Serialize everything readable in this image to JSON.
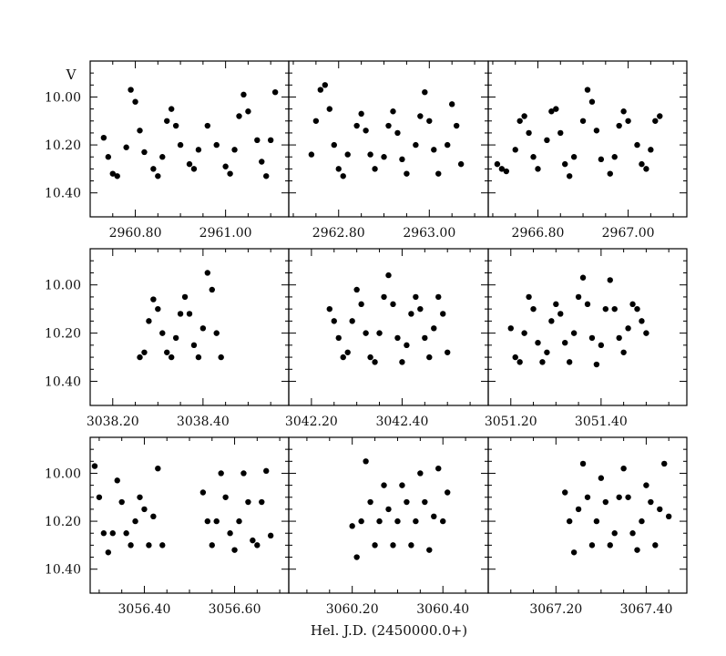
{
  "figure": {
    "y_axis_label": "V",
    "x_axis_label": "Hel. J.D. (2450000.0+)",
    "y_ticks": [
      "10.00",
      "10.20",
      "10.40"
    ]
  },
  "chart_data": [
    {
      "type": "scatter",
      "row": 1,
      "col": 1,
      "x_ticks": [
        "2960.80",
        "2961.00"
      ],
      "xlim": [
        2960.7,
        2961.14
      ],
      "ylim": [
        10.5,
        9.85
      ],
      "y_inverted": true,
      "x": [
        2960.73,
        2960.74,
        2960.75,
        2960.76,
        2960.78,
        2960.79,
        2960.8,
        2960.81,
        2960.82,
        2960.84,
        2960.85,
        2960.86,
        2960.87,
        2960.88,
        2960.89,
        2960.9,
        2960.92,
        2960.93,
        2960.94,
        2960.96,
        2960.98,
        2961.0,
        2961.01,
        2961.02,
        2961.03,
        2961.04,
        2961.05,
        2961.07,
        2961.08,
        2961.09,
        2961.1,
        2961.11
      ],
      "y": [
        10.17,
        10.25,
        10.32,
        10.33,
        10.21,
        9.97,
        10.02,
        10.14,
        10.23,
        10.3,
        10.33,
        10.25,
        10.1,
        10.05,
        10.12,
        10.2,
        10.28,
        10.3,
        10.22,
        10.12,
        10.2,
        10.29,
        10.32,
        10.22,
        10.08,
        9.99,
        10.06,
        10.18,
        10.27,
        10.33,
        10.18,
        9.98
      ],
      "marker": "filled-circle",
      "grid": false
    },
    {
      "type": "scatter",
      "row": 1,
      "col": 2,
      "x_ticks": [
        "2962.80",
        "2963.00"
      ],
      "xlim": [
        2962.69,
        2963.13
      ],
      "ylim": [
        10.5,
        9.85
      ],
      "y_inverted": true,
      "x": [
        2962.74,
        2962.75,
        2962.76,
        2962.77,
        2962.78,
        2962.79,
        2962.8,
        2962.81,
        2962.82,
        2962.84,
        2962.85,
        2962.86,
        2962.87,
        2962.88,
        2962.9,
        2962.91,
        2962.92,
        2962.93,
        2962.94,
        2962.95,
        2962.97,
        2962.98,
        2962.99,
        2963.0,
        2963.01,
        2963.02,
        2963.04,
        2963.05,
        2963.06,
        2963.07
      ],
      "y": [
        10.24,
        10.1,
        9.97,
        9.95,
        10.05,
        10.2,
        10.3,
        10.33,
        10.24,
        10.12,
        10.07,
        10.14,
        10.24,
        10.3,
        10.25,
        10.12,
        10.06,
        10.15,
        10.26,
        10.32,
        10.2,
        10.08,
        9.98,
        10.1,
        10.22,
        10.32,
        10.2,
        10.03,
        10.12,
        10.28
      ],
      "marker": "filled-circle",
      "grid": false
    },
    {
      "type": "scatter",
      "row": 1,
      "col": 3,
      "x_ticks": [
        "2966.80",
        "2967.00"
      ],
      "xlim": [
        2966.69,
        2967.13
      ],
      "ylim": [
        10.5,
        9.85
      ],
      "y_inverted": true,
      "x": [
        2966.71,
        2966.72,
        2966.73,
        2966.75,
        2966.76,
        2966.77,
        2966.78,
        2966.79,
        2966.8,
        2966.82,
        2966.83,
        2966.84,
        2966.85,
        2966.86,
        2966.87,
        2966.88,
        2966.9,
        2966.91,
        2966.92,
        2966.93,
        2966.94,
        2966.96,
        2966.97,
        2966.98,
        2966.99,
        2967.0,
        2967.02,
        2967.03,
        2967.04,
        2967.05,
        2967.06,
        2967.07
      ],
      "y": [
        10.28,
        10.3,
        10.31,
        10.22,
        10.1,
        10.08,
        10.15,
        10.25,
        10.3,
        10.18,
        10.06,
        10.05,
        10.15,
        10.28,
        10.33,
        10.25,
        10.1,
        9.97,
        10.02,
        10.14,
        10.26,
        10.32,
        10.25,
        10.12,
        10.06,
        10.1,
        10.2,
        10.28,
        10.3,
        10.22,
        10.1,
        10.08
      ],
      "marker": "filled-circle",
      "grid": false
    },
    {
      "type": "scatter",
      "row": 2,
      "col": 1,
      "x_ticks": [
        "3038.20",
        "3038.40"
      ],
      "xlim": [
        3038.15,
        3038.59
      ],
      "ylim": [
        10.5,
        9.85
      ],
      "y_inverted": true,
      "x": [
        3038.26,
        3038.27,
        3038.28,
        3038.29,
        3038.3,
        3038.31,
        3038.32,
        3038.33,
        3038.34,
        3038.35,
        3038.36,
        3038.37,
        3038.38,
        3038.39,
        3038.4,
        3038.41,
        3038.42,
        3038.43,
        3038.44
      ],
      "y": [
        10.3,
        10.28,
        10.15,
        10.06,
        10.1,
        10.2,
        10.28,
        10.3,
        10.22,
        10.12,
        10.05,
        10.12,
        10.25,
        10.3,
        10.18,
        9.95,
        10.02,
        10.2,
        10.3
      ],
      "marker": "filled-circle",
      "grid": false
    },
    {
      "type": "scatter",
      "row": 2,
      "col": 2,
      "x_ticks": [
        "3042.20",
        "3042.40"
      ],
      "xlim": [
        3042.15,
        3042.59
      ],
      "ylim": [
        10.5,
        9.85
      ],
      "y_inverted": true,
      "x": [
        3042.24,
        3042.25,
        3042.26,
        3042.27,
        3042.28,
        3042.29,
        3042.3,
        3042.31,
        3042.32,
        3042.33,
        3042.34,
        3042.35,
        3042.36,
        3042.37,
        3042.38,
        3042.39,
        3042.4,
        3042.41,
        3042.42,
        3042.43,
        3042.44,
        3042.45,
        3042.46,
        3042.47,
        3042.48,
        3042.49,
        3042.5
      ],
      "y": [
        10.1,
        10.15,
        10.22,
        10.3,
        10.28,
        10.15,
        10.02,
        10.08,
        10.2,
        10.3,
        10.32,
        10.2,
        10.05,
        9.96,
        10.08,
        10.22,
        10.32,
        10.25,
        10.12,
        10.05,
        10.1,
        10.22,
        10.3,
        10.18,
        10.05,
        10.12,
        10.28
      ],
      "marker": "filled-circle",
      "grid": false
    },
    {
      "type": "scatter",
      "row": 2,
      "col": 3,
      "x_ticks": [
        "3051.20",
        "3051.40"
      ],
      "xlim": [
        3051.15,
        3051.59
      ],
      "ylim": [
        10.5,
        9.85
      ],
      "y_inverted": true,
      "x": [
        3051.2,
        3051.21,
        3051.22,
        3051.23,
        3051.24,
        3051.25,
        3051.26,
        3051.27,
        3051.28,
        3051.29,
        3051.3,
        3051.31,
        3051.32,
        3051.33,
        3051.34,
        3051.35,
        3051.36,
        3051.37,
        3051.38,
        3051.39,
        3051.4,
        3051.41,
        3051.42,
        3051.43,
        3051.44,
        3051.45,
        3051.46,
        3051.47,
        3051.48,
        3051.49,
        3051.5
      ],
      "y": [
        10.18,
        10.3,
        10.32,
        10.2,
        10.05,
        10.1,
        10.24,
        10.32,
        10.28,
        10.15,
        10.08,
        10.12,
        10.24,
        10.32,
        10.2,
        10.05,
        9.97,
        10.08,
        10.22,
        10.33,
        10.25,
        10.1,
        9.98,
        10.1,
        10.22,
        10.28,
        10.18,
        10.08,
        10.1,
        10.15,
        10.2
      ],
      "marker": "filled-circle",
      "grid": false
    },
    {
      "type": "scatter",
      "row": 3,
      "col": 1,
      "x_ticks": [
        "3056.40",
        "3056.60"
      ],
      "xlim": [
        3056.28,
        3056.72
      ],
      "ylim": [
        10.5,
        9.85
      ],
      "y_inverted": true,
      "x": [
        3056.29,
        3056.3,
        3056.31,
        3056.32,
        3056.33,
        3056.34,
        3056.35,
        3056.36,
        3056.37,
        3056.38,
        3056.39,
        3056.4,
        3056.41,
        3056.42,
        3056.43,
        3056.44,
        3056.53,
        3056.54,
        3056.55,
        3056.56,
        3056.57,
        3056.58,
        3056.59,
        3056.6,
        3056.61,
        3056.62,
        3056.63,
        3056.64,
        3056.65,
        3056.66,
        3056.67,
        3056.68
      ],
      "y": [
        9.97,
        10.1,
        10.25,
        10.33,
        10.25,
        10.03,
        10.12,
        10.25,
        10.3,
        10.2,
        10.1,
        10.15,
        10.3,
        10.18,
        9.98,
        10.3,
        10.08,
        10.2,
        10.3,
        10.2,
        10.0,
        10.1,
        10.25,
        10.32,
        10.2,
        10.0,
        10.12,
        10.28,
        10.3,
        10.12,
        9.99,
        10.26
      ],
      "marker": "filled-circle",
      "grid": false
    },
    {
      "type": "scatter",
      "row": 3,
      "col": 2,
      "x_ticks": [
        "3060.20",
        "3060.40"
      ],
      "xlim": [
        3060.06,
        3060.5
      ],
      "ylim": [
        10.5,
        9.85
      ],
      "y_inverted": true,
      "x": [
        3060.2,
        3060.21,
        3060.22,
        3060.23,
        3060.24,
        3060.25,
        3060.26,
        3060.27,
        3060.28,
        3060.29,
        3060.3,
        3060.31,
        3060.32,
        3060.33,
        3060.34,
        3060.35,
        3060.36,
        3060.37,
        3060.38,
        3060.39,
        3060.4,
        3060.41
      ],
      "y": [
        10.22,
        10.35,
        10.2,
        9.95,
        10.12,
        10.3,
        10.2,
        10.05,
        10.15,
        10.3,
        10.2,
        10.05,
        10.12,
        10.3,
        10.2,
        10.0,
        10.12,
        10.32,
        10.18,
        9.98,
        10.2,
        10.08
      ],
      "marker": "filled-circle",
      "grid": false
    },
    {
      "type": "scatter",
      "row": 3,
      "col": 3,
      "x_ticks": [
        "3067.20",
        "3067.40"
      ],
      "xlim": [
        3067.05,
        3067.49
      ],
      "ylim": [
        10.5,
        9.85
      ],
      "y_inverted": true,
      "x": [
        3067.22,
        3067.23,
        3067.24,
        3067.25,
        3067.26,
        3067.27,
        3067.28,
        3067.29,
        3067.3,
        3067.31,
        3067.32,
        3067.33,
        3067.34,
        3067.35,
        3067.36,
        3067.37,
        3067.38,
        3067.39,
        3067.4,
        3067.41,
        3067.42,
        3067.43,
        3067.44,
        3067.45
      ],
      "y": [
        10.08,
        10.2,
        10.33,
        10.15,
        9.96,
        10.1,
        10.3,
        10.2,
        10.02,
        10.12,
        10.3,
        10.25,
        10.1,
        9.98,
        10.1,
        10.25,
        10.32,
        10.2,
        10.05,
        10.12,
        10.3,
        10.15,
        9.96,
        10.18
      ],
      "marker": "filled-circle",
      "grid": false
    }
  ]
}
